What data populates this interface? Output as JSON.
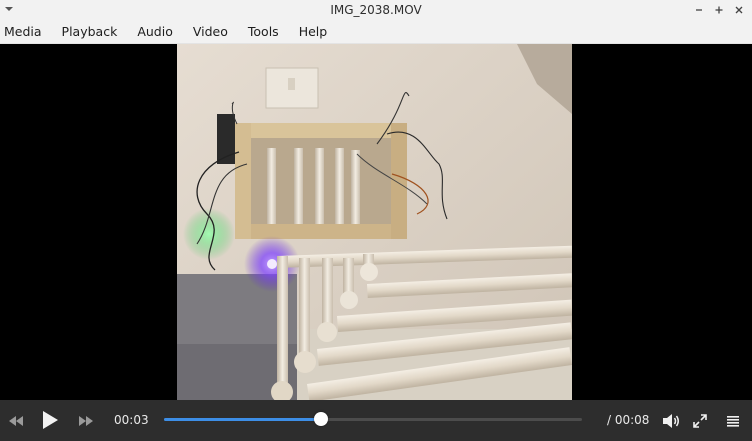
{
  "window": {
    "title": "IMG_2038.MOV"
  },
  "menu": {
    "items": [
      "Media",
      "Playback",
      "Audio",
      "Video",
      "Tools",
      "Help"
    ]
  },
  "video": {
    "frame_description_icon": "video-frame"
  },
  "controls": {
    "current_time": "00:03",
    "total_time": "/ 00:08",
    "progress": 0.375,
    "accent_color": "#3d8ee6"
  },
  "icons": {
    "window_menu": "chevron-down-icon",
    "minimize": "minimize-icon",
    "maximize": "maximize-icon",
    "close": "close-icon",
    "rewind": "rewind-icon",
    "play": "play-icon",
    "forward": "fast-forward-icon",
    "volume": "volume-icon",
    "fullscreen": "fullscreen-icon",
    "playlist": "playlist-icon"
  }
}
